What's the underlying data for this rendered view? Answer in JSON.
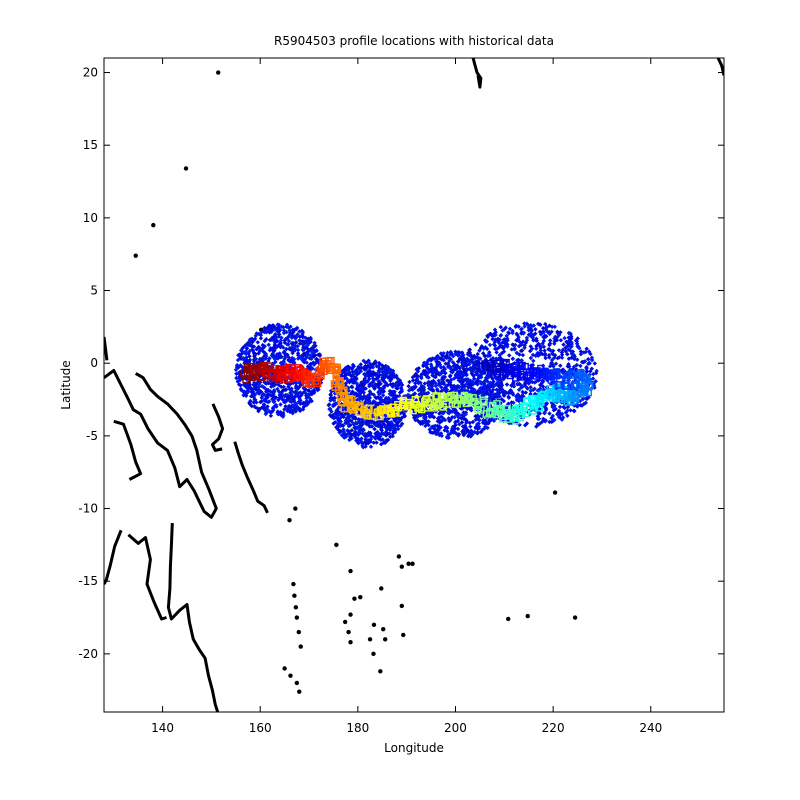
{
  "chart_data": {
    "type": "scatter",
    "title": "R5904503 profile locations with historical data",
    "xlabel": "Longitude",
    "ylabel": "Latitude",
    "xlim": [
      128,
      255
    ],
    "ylim": [
      -24,
      21
    ],
    "xticks": [
      140,
      160,
      180,
      200,
      220,
      240
    ],
    "yticks": [
      20,
      15,
      10,
      5,
      0,
      -5,
      -10,
      -15,
      -20
    ],
    "xtick_labels": [
      "140",
      "160",
      "180",
      "200",
      "220",
      "240"
    ],
    "ytick_labels": [
      "20",
      "15",
      "10",
      "5",
      "0",
      "-5",
      "-10",
      "-15",
      "-20"
    ],
    "grid": false,
    "legend": "none",
    "historical_color": "#0033ff",
    "coast_color": "#000000",
    "historical_regions": [
      {
        "center": [
          164,
          -0.5
        ],
        "spread": [
          9,
          3.2
        ]
      },
      {
        "center": [
          182,
          -2.8
        ],
        "spread": [
          8,
          3.0
        ]
      },
      {
        "center": [
          200,
          -2.2
        ],
        "spread": [
          10,
          3.0
        ]
      },
      {
        "center": [
          215,
          -0.8
        ],
        "spread": [
          14,
          3.6
        ]
      }
    ],
    "float_track": {
      "colormap": "jet",
      "points": [
        [
          157,
          -0.8
        ],
        [
          159,
          -0.6
        ],
        [
          161,
          -0.5
        ],
        [
          163,
          -0.7
        ],
        [
          165,
          -0.9
        ],
        [
          167,
          -0.6
        ],
        [
          169,
          -0.8
        ],
        [
          171,
          -1.2
        ],
        [
          173,
          -0.2
        ],
        [
          175,
          0.0
        ],
        [
          176,
          -1.5
        ],
        [
          177,
          -2.5
        ],
        [
          179,
          -3.0
        ],
        [
          182,
          -3.2
        ],
        [
          185,
          -3.3
        ],
        [
          188,
          -3.0
        ],
        [
          191,
          -2.9
        ],
        [
          194,
          -2.7
        ],
        [
          197,
          -2.6
        ],
        [
          200,
          -2.6
        ],
        [
          203,
          -2.7
        ],
        [
          206,
          -3.0
        ],
        [
          209,
          -3.4
        ],
        [
          211,
          -3.6
        ],
        [
          213,
          -3.4
        ],
        [
          215,
          -3.0
        ],
        [
          217,
          -2.6
        ],
        [
          219,
          -2.2
        ],
        [
          221,
          -2.0
        ],
        [
          223,
          -2.4
        ],
        [
          225,
          -2.0
        ],
        [
          227,
          -1.5
        ],
        [
          226,
          -1.0
        ],
        [
          223,
          -1.2
        ],
        [
          220,
          -1.0
        ],
        [
          218,
          -0.6
        ],
        [
          215,
          -0.4
        ],
        [
          212,
          -0.6
        ],
        [
          209,
          -0.3
        ],
        [
          206,
          -0.5
        ]
      ]
    },
    "coastlines": [
      [
        [
          128,
          -1.0
        ],
        [
          130,
          -0.5
        ],
        [
          131.5,
          -1.5
        ],
        [
          133,
          -2.5
        ],
        [
          134,
          -3.2
        ],
        [
          135.5,
          -3.5
        ],
        [
          137,
          -4.5
        ],
        [
          139,
          -5.5
        ],
        [
          141,
          -6.0
        ],
        [
          142.5,
          -7.2
        ],
        [
          143.5,
          -8.5
        ],
        [
          145,
          -8.0
        ],
        [
          146.5,
          -8.8
        ],
        [
          147.5,
          -9.5
        ],
        [
          148.5,
          -10.2
        ],
        [
          150,
          -10.6
        ],
        [
          151,
          -10.0
        ],
        [
          149.5,
          -8.7
        ],
        [
          148,
          -7.5
        ],
        [
          147,
          -6.0
        ],
        [
          146,
          -5.0
        ],
        [
          144.5,
          -4.2
        ],
        [
          143,
          -3.5
        ],
        [
          141,
          -2.8
        ],
        [
          139,
          -2.3
        ],
        [
          137.5,
          -1.8
        ],
        [
          136,
          -1.0
        ],
        [
          134.5,
          -0.7
        ]
      ],
      [
        [
          130,
          -4.0
        ],
        [
          132,
          -4.2
        ],
        [
          133.5,
          -5.6
        ],
        [
          134.5,
          -6.8
        ],
        [
          135.5,
          -7.6
        ],
        [
          133.2,
          -8.0
        ]
      ],
      [
        [
          142,
          -11.0
        ],
        [
          141.8,
          -12.5
        ],
        [
          141.6,
          -14.0
        ],
        [
          141.5,
          -15.5
        ],
        [
          141.2,
          -16.8
        ],
        [
          141.8,
          -17.6
        ],
        [
          143.5,
          -17.0
        ],
        [
          145,
          -16.6
        ],
        [
          145.5,
          -17.8
        ],
        [
          146.3,
          -19.0
        ],
        [
          147.5,
          -19.7
        ],
        [
          148.7,
          -20.3
        ],
        [
          149.4,
          -21.5
        ],
        [
          150.2,
          -22.5
        ],
        [
          150.8,
          -23.5
        ],
        [
          151.3,
          -24.0
        ]
      ],
      [
        [
          131.5,
          -11.5
        ],
        [
          130.2,
          -12.6
        ],
        [
          129.3,
          -13.9
        ],
        [
          128.5,
          -14.9
        ],
        [
          128.0,
          -15.2
        ]
      ],
      [
        [
          133,
          -11.8
        ],
        [
          135,
          -12.4
        ],
        [
          136.5,
          -12.0
        ],
        [
          137.5,
          -13.5
        ],
        [
          136.8,
          -15.2
        ],
        [
          138.2,
          -16.4
        ],
        [
          139.8,
          -17.6
        ],
        [
          140.8,
          -17.5
        ]
      ],
      [
        [
          150.3,
          -2.8
        ],
        [
          151.5,
          -3.7
        ],
        [
          152.3,
          -4.5
        ],
        [
          151.5,
          -5.2
        ],
        [
          150.2,
          -5.6
        ],
        [
          150.8,
          -6.0
        ],
        [
          152.2,
          -5.9
        ]
      ],
      [
        [
          154.8,
          -5.4
        ],
        [
          155.5,
          -6.2
        ],
        [
          156.3,
          -7.0
        ],
        [
          157.3,
          -7.8
        ],
        [
          158.5,
          -8.7
        ],
        [
          159.5,
          -9.5
        ],
        [
          160.8,
          -9.8
        ],
        [
          161.5,
          -10.3
        ]
      ],
      [
        [
          128,
          1.8
        ],
        [
          128.3,
          1.0
        ],
        [
          128.6,
          0.2
        ]
      ],
      [
        [
          203.6,
          21.0
        ],
        [
          204.0,
          20.5
        ],
        [
          204.4,
          20.0
        ],
        [
          205.2,
          19.6
        ],
        [
          205.0,
          19.0
        ],
        [
          204.6,
          19.8
        ]
      ],
      [
        [
          253.8,
          21.0
        ],
        [
          254.5,
          20.5
        ],
        [
          255,
          19.8
        ]
      ]
    ],
    "islands": [
      [
        144.8,
        13.4
      ],
      [
        138.1,
        9.5
      ],
      [
        134.5,
        7.4
      ],
      [
        166.0,
        -10.8
      ],
      [
        167.2,
        -10.0
      ],
      [
        166.8,
        -15.2
      ],
      [
        167.0,
        -16.0
      ],
      [
        167.3,
        -16.8
      ],
      [
        167.5,
        -17.5
      ],
      [
        167.9,
        -18.5
      ],
      [
        168.3,
        -19.5
      ],
      [
        165.0,
        -21.0
      ],
      [
        166.2,
        -21.5
      ],
      [
        167.5,
        -22.0
      ],
      [
        168.0,
        -22.6
      ],
      [
        175.6,
        -12.5
      ],
      [
        178.5,
        -14.3
      ],
      [
        179.3,
        -16.2
      ],
      [
        178.5,
        -17.3
      ],
      [
        177.4,
        -17.8
      ],
      [
        178.1,
        -18.5
      ],
      [
        178.5,
        -19.2
      ],
      [
        180.5,
        -16.1
      ],
      [
        183.3,
        -18.0
      ],
      [
        184.8,
        -15.5
      ],
      [
        184.6,
        -21.2
      ],
      [
        185.6,
        -19.0
      ],
      [
        189.0,
        -14.0
      ],
      [
        190.4,
        -13.8
      ],
      [
        188.4,
        -13.3
      ],
      [
        189.3,
        -18.7
      ],
      [
        185.2,
        -18.3
      ],
      [
        189.0,
        -16.7
      ],
      [
        182.5,
        -19.0
      ],
      [
        183.2,
        -20.0
      ],
      [
        191.2,
        -13.8
      ],
      [
        210.8,
        -17.6
      ],
      [
        214.8,
        -17.4
      ],
      [
        220.4,
        -8.9
      ],
      [
        224.5,
        -17.5
      ],
      [
        151.4,
        20.0
      ],
      [
        160.2,
        2.3
      ]
    ]
  }
}
